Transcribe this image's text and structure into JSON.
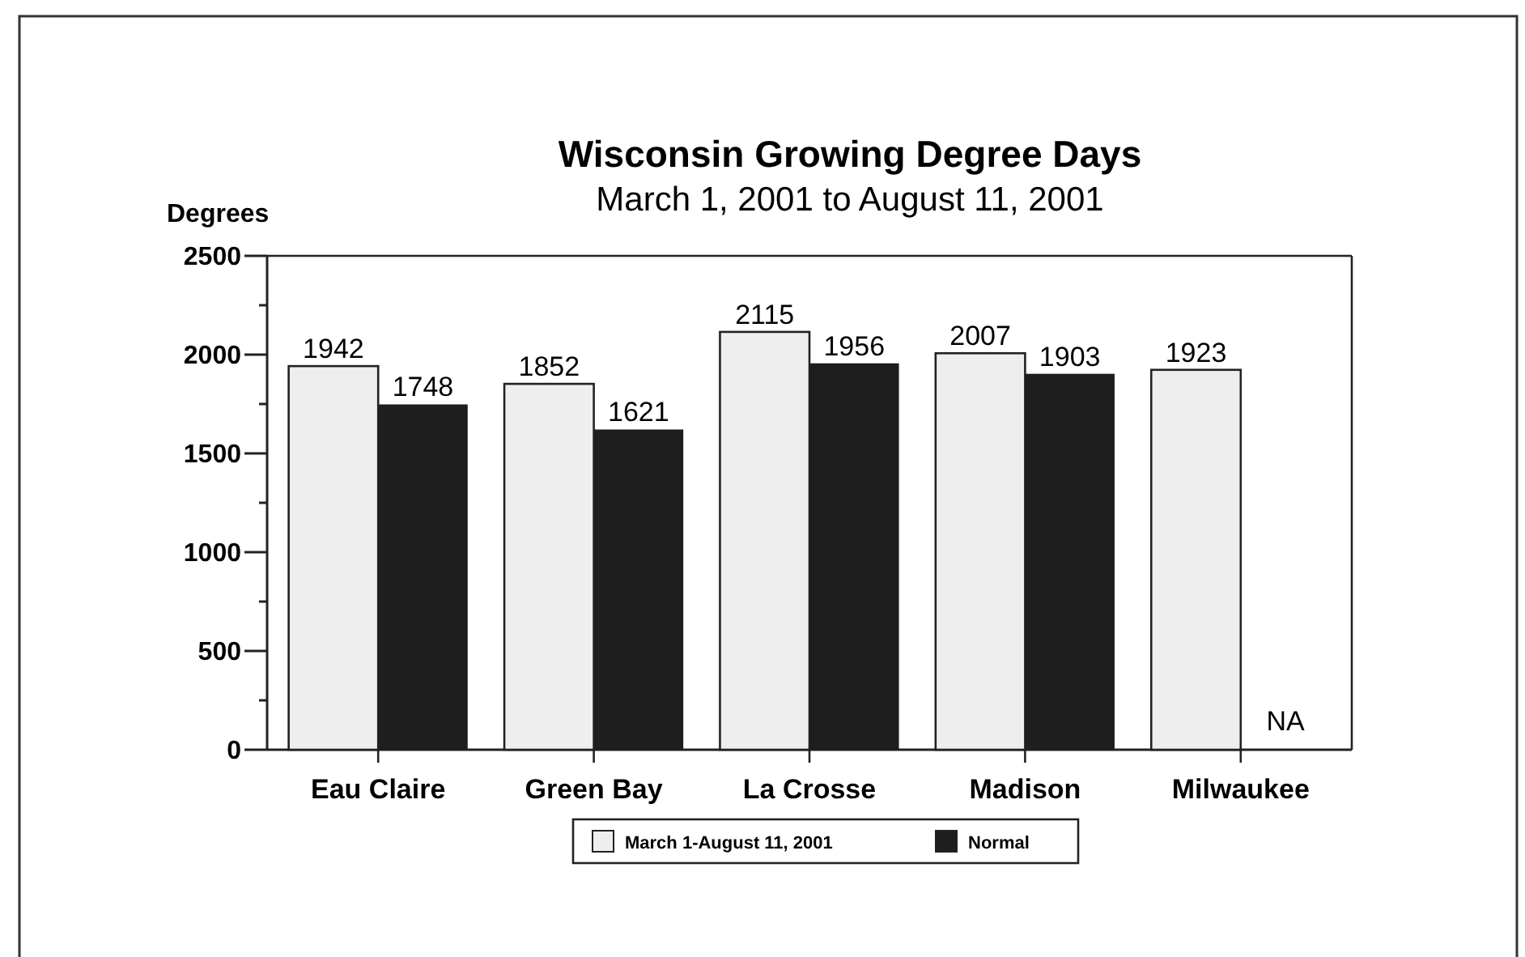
{
  "chart_data": {
    "type": "bar",
    "title": "Wisconsin Growing Degree Days",
    "subtitle": "March 1, 2001 to August 11, 2001",
    "ylabel": "Degrees",
    "categories": [
      "Eau Claire",
      "Green Bay",
      "La Crosse",
      "Madison",
      "Milwaukee"
    ],
    "series": [
      {
        "name": "March 1-August 11, 2001",
        "color": "#eeeeee",
        "values": [
          1942,
          1852,
          2115,
          2007,
          1923
        ],
        "value_labels": [
          "1942",
          "1852",
          "2115",
          "2007",
          "1923"
        ]
      },
      {
        "name": "Normal",
        "color": "#1e1e1e",
        "values": [
          1748,
          1621,
          1956,
          1903,
          null
        ],
        "value_labels": [
          "1748",
          "1621",
          "1956",
          "1903",
          "NA"
        ]
      }
    ],
    "ylim": [
      0,
      2500
    ],
    "yticks": [
      0,
      {
        "value": 250,
        "label": null
      },
      500,
      {
        "value": 750,
        "label": null
      },
      1000,
      {
        "value": 1250,
        "label": null
      },
      1500,
      {
        "value": 1750,
        "label": null
      },
      2000,
      {
        "value": 2250,
        "label": null
      },
      2500
    ],
    "grid": false,
    "legend": "bottom"
  }
}
